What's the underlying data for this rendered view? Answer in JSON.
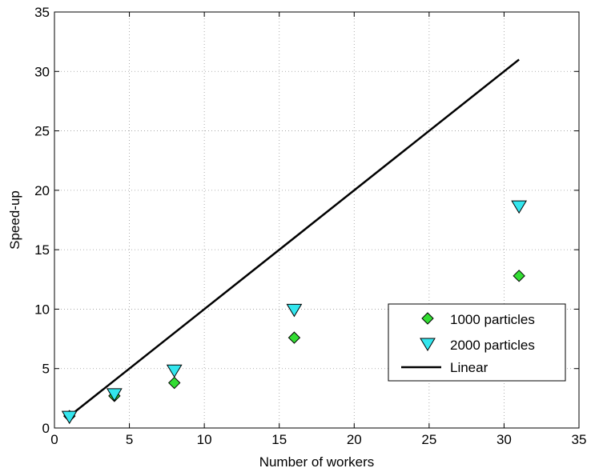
{
  "chart_data": {
    "type": "scatter",
    "xlabel": "Number of workers",
    "ylabel": "Speed-up",
    "xlim": [
      0,
      35
    ],
    "ylim": [
      0,
      35
    ],
    "xticks": [
      0,
      5,
      10,
      15,
      20,
      25,
      30,
      35
    ],
    "yticks": [
      0,
      5,
      10,
      15,
      20,
      25,
      30,
      35
    ],
    "grid": true,
    "legend_position": "lower-right",
    "series": [
      {
        "name": "1000 particles",
        "marker": "diamond",
        "color": "#33dd33",
        "x": [
          1,
          4,
          8,
          16,
          31
        ],
        "y": [
          1.0,
          2.7,
          3.8,
          7.6,
          12.8
        ]
      },
      {
        "name": "2000 particles",
        "marker": "triangle-down",
        "color": "#33e6ee",
        "x": [
          1,
          4,
          8,
          16,
          31
        ],
        "y": [
          1.0,
          2.9,
          4.9,
          10.0,
          18.7
        ]
      },
      {
        "name": "Linear",
        "marker": "line",
        "color": "#000000",
        "x": [
          1,
          31
        ],
        "y": [
          1,
          31
        ]
      }
    ]
  }
}
